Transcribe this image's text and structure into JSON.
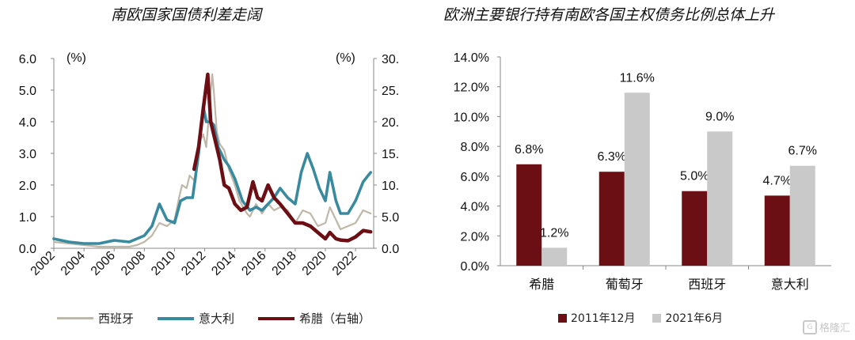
{
  "left": {
    "title": "南欧国家国债利差走阔",
    "unit_left": "(%)",
    "unit_right": "(%)",
    "y_left_ticks": [
      "0.0",
      "1.0",
      "2.0",
      "3.0",
      "4.0",
      "5.0",
      "6.0"
    ],
    "y_right_ticks": [
      "0.0",
      "5.0",
      "10.",
      "15.",
      "20.",
      "25.",
      "30."
    ],
    "x_ticks": [
      "2002",
      "2004",
      "2006",
      "2008",
      "2010",
      "2012",
      "2014",
      "2016",
      "2018",
      "2020",
      "2022"
    ],
    "legend": [
      "西班牙",
      "意大利",
      "希腊（右轴）"
    ]
  },
  "right": {
    "title": "欧洲主要银行持有南欧各国主权债务比例总体上升",
    "y_ticks": [
      "0.0%",
      "2.0%",
      "4.0%",
      "6.0%",
      "8.0%",
      "10.0%",
      "12.0%",
      "14.0%"
    ],
    "legend": [
      "2011年12月",
      "2021年6月"
    ]
  },
  "chart_data": [
    {
      "type": "line",
      "title": "南欧国家国债利差走阔",
      "xlabel": "",
      "ylabel": "(%)",
      "y2label": "(%)",
      "xlim": [
        2002,
        2023.2
      ],
      "ylim": [
        0,
        6
      ],
      "y2lim": [
        0,
        30
      ],
      "series": [
        {
          "name": "西班牙",
          "axis": "left",
          "color": "#bfb8a8",
          "points": [
            [
              2002.0,
              0.2
            ],
            [
              2003.0,
              0.15
            ],
            [
              2004.0,
              0.1
            ],
            [
              2005.0,
              0.05
            ],
            [
              2006.0,
              0.05
            ],
            [
              2007.0,
              0.05
            ],
            [
              2007.5,
              0.1
            ],
            [
              2008.0,
              0.2
            ],
            [
              2008.5,
              0.4
            ],
            [
              2009.0,
              0.8
            ],
            [
              2009.5,
              0.7
            ],
            [
              2010.0,
              0.9
            ],
            [
              2010.3,
              1.6
            ],
            [
              2010.5,
              2.0
            ],
            [
              2010.8,
              1.9
            ],
            [
              2011.0,
              2.3
            ],
            [
              2011.4,
              2.1
            ],
            [
              2011.6,
              3.3
            ],
            [
              2011.9,
              3.6
            ],
            [
              2012.1,
              3.2
            ],
            [
              2012.3,
              4.3
            ],
            [
              2012.5,
              5.5
            ],
            [
              2012.6,
              5.0
            ],
            [
              2012.8,
              3.7
            ],
            [
              2013.0,
              3.3
            ],
            [
              2013.3,
              3.1
            ],
            [
              2013.6,
              2.5
            ],
            [
              2014.0,
              2.0
            ],
            [
              2014.3,
              1.5
            ],
            [
              2014.8,
              1.1
            ],
            [
              2015.0,
              1.0
            ],
            [
              2015.4,
              1.4
            ],
            [
              2015.8,
              1.1
            ],
            [
              2016.2,
              1.4
            ],
            [
              2016.6,
              1.2
            ],
            [
              2017.0,
              1.3
            ],
            [
              2017.5,
              1.2
            ],
            [
              2018.0,
              0.8
            ],
            [
              2018.5,
              1.2
            ],
            [
              2019.0,
              1.1
            ],
            [
              2019.5,
              0.7
            ],
            [
              2020.0,
              0.8
            ],
            [
              2020.3,
              1.3
            ],
            [
              2020.7,
              0.9
            ],
            [
              2021.0,
              0.6
            ],
            [
              2021.5,
              0.7
            ],
            [
              2022.0,
              0.8
            ],
            [
              2022.5,
              1.2
            ],
            [
              2023.0,
              1.1
            ]
          ]
        },
        {
          "name": "意大利",
          "axis": "left",
          "color": "#3a8a9f",
          "points": [
            [
              2002.0,
              0.3
            ],
            [
              2003.0,
              0.2
            ],
            [
              2004.0,
              0.15
            ],
            [
              2005.0,
              0.15
            ],
            [
              2006.0,
              0.25
            ],
            [
              2007.0,
              0.2
            ],
            [
              2008.0,
              0.4
            ],
            [
              2008.5,
              0.7
            ],
            [
              2009.0,
              1.4
            ],
            [
              2009.5,
              0.9
            ],
            [
              2010.0,
              0.8
            ],
            [
              2010.4,
              1.5
            ],
            [
              2010.8,
              1.6
            ],
            [
              2011.2,
              1.6
            ],
            [
              2011.6,
              3.0
            ],
            [
              2011.9,
              4.5
            ],
            [
              2012.1,
              4.0
            ],
            [
              2012.4,
              4.0
            ],
            [
              2012.6,
              3.9
            ],
            [
              2012.9,
              3.2
            ],
            [
              2013.3,
              2.8
            ],
            [
              2013.6,
              2.6
            ],
            [
              2014.0,
              2.2
            ],
            [
              2014.5,
              1.5
            ],
            [
              2015.0,
              1.2
            ],
            [
              2015.4,
              1.3
            ],
            [
              2015.8,
              1.2
            ],
            [
              2016.2,
              1.4
            ],
            [
              2016.6,
              1.6
            ],
            [
              2017.0,
              1.9
            ],
            [
              2017.5,
              1.6
            ],
            [
              2018.0,
              1.4
            ],
            [
              2018.4,
              2.4
            ],
            [
              2018.8,
              3.0
            ],
            [
              2019.2,
              2.5
            ],
            [
              2019.6,
              1.9
            ],
            [
              2020.0,
              1.5
            ],
            [
              2020.3,
              2.4
            ],
            [
              2020.7,
              1.5
            ],
            [
              2021.0,
              1.1
            ],
            [
              2021.5,
              1.1
            ],
            [
              2022.0,
              1.5
            ],
            [
              2022.5,
              2.1
            ],
            [
              2023.0,
              2.4
            ]
          ]
        },
        {
          "name": "希腊（右轴）",
          "axis": "right",
          "color": "#6b0f14",
          "points": [
            [
              2011.3,
              12.5
            ],
            [
              2011.6,
              16.0
            ],
            [
              2011.9,
              22.0
            ],
            [
              2012.2,
              27.5
            ],
            [
              2012.4,
              20.0
            ],
            [
              2012.7,
              17.0
            ],
            [
              2013.0,
              14.0
            ],
            [
              2013.3,
              10.0
            ],
            [
              2013.6,
              9.5
            ],
            [
              2014.0,
              7.0
            ],
            [
              2014.4,
              6.0
            ],
            [
              2014.8,
              6.5
            ],
            [
              2015.2,
              10.5
            ],
            [
              2015.5,
              8.0
            ],
            [
              2015.8,
              7.5
            ],
            [
              2016.2,
              10.0
            ],
            [
              2016.6,
              8.0
            ],
            [
              2017.0,
              7.0
            ],
            [
              2017.5,
              5.5
            ],
            [
              2018.0,
              4.0
            ],
            [
              2018.5,
              4.0
            ],
            [
              2019.0,
              3.5
            ],
            [
              2019.5,
              2.5
            ],
            [
              2020.0,
              1.5
            ],
            [
              2020.3,
              2.5
            ],
            [
              2020.7,
              1.5
            ],
            [
              2021.0,
              1.3
            ],
            [
              2021.5,
              1.2
            ],
            [
              2022.0,
              1.8
            ],
            [
              2022.5,
              2.8
            ],
            [
              2023.0,
              2.6
            ]
          ]
        }
      ]
    },
    {
      "type": "bar",
      "title": "欧洲主要银行持有南欧各国主权债务比例总体上升",
      "categories": [
        "希腊",
        "葡萄牙",
        "西班牙",
        "意大利"
      ],
      "ylim": [
        0,
        14
      ],
      "series": [
        {
          "name": "2011年12月",
          "color": "#6b0f14",
          "values": [
            6.8,
            6.3,
            5.0,
            4.7
          ],
          "labels": [
            "6.8%",
            "6.3%",
            "5.0%",
            "4.7%"
          ]
        },
        {
          "name": "2021年6月",
          "color": "#c9c9c9",
          "values": [
            1.2,
            11.6,
            9.0,
            6.7
          ],
          "labels": [
            "1.2%",
            "11.6%",
            "9.0%",
            "6.7%"
          ]
        }
      ]
    }
  ],
  "watermark": "格隆汇"
}
